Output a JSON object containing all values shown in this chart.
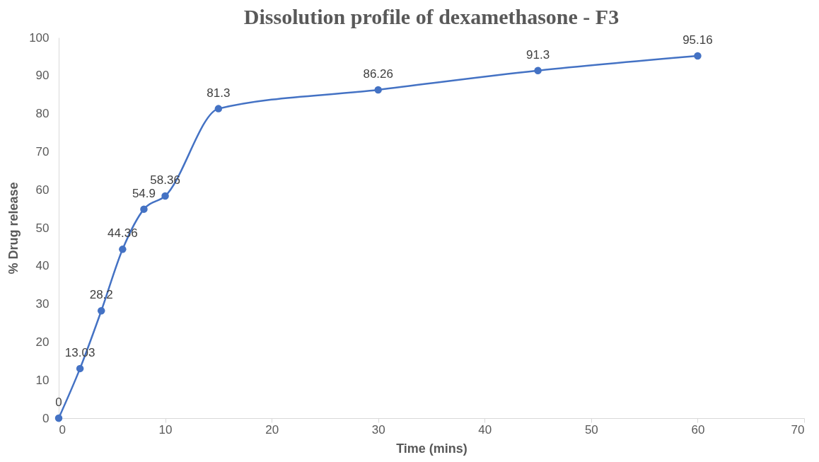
{
  "chart_data": {
    "type": "line",
    "title": "Dissolution profile of dexamethasone - F3",
    "xlabel": "Time (mins)",
    "ylabel": "% Drug release",
    "x": [
      0,
      2,
      4,
      6,
      8,
      10,
      15,
      30,
      45,
      60
    ],
    "series": [
      {
        "color": "#4472c4",
        "values": [
          0,
          13.03,
          28.2,
          44.36,
          54.9,
          58.36,
          81.3,
          86.26,
          91.3,
          95.16
        ]
      }
    ],
    "xlim": [
      0,
      70
    ],
    "xticks": [
      0,
      10,
      20,
      30,
      40,
      50,
      60,
      70
    ],
    "ylim": [
      0,
      100
    ],
    "yticks": [
      0,
      10,
      20,
      30,
      40,
      50,
      60,
      70,
      80,
      90,
      100
    ],
    "grid": false,
    "marker": "circle",
    "line_style": "solid",
    "data_labels": true
  }
}
